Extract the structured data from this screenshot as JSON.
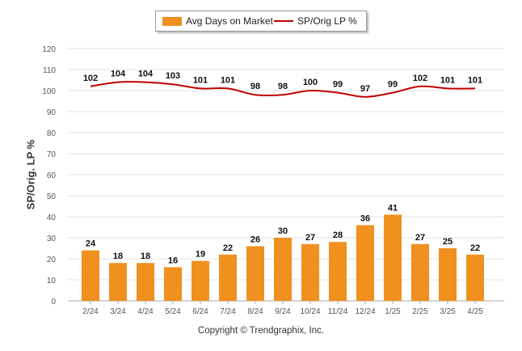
{
  "chart_data": {
    "type": "bar",
    "categories": [
      "2/24",
      "3/24",
      "4/24",
      "5/24",
      "6/24",
      "7/24",
      "8/24",
      "9/24",
      "10/24",
      "11/24",
      "12/24",
      "1/25",
      "2/25",
      "3/25",
      "4/25"
    ],
    "series": [
      {
        "name": "Avg Days on Market",
        "type": "bar",
        "color": "#f0901e",
        "values": [
          24,
          18,
          18,
          16,
          19,
          22,
          26,
          30,
          27,
          28,
          36,
          41,
          27,
          25,
          22
        ]
      },
      {
        "name": "SP/Orig LP %",
        "type": "line",
        "color": "#c00000",
        "values": [
          102,
          104,
          104,
          103,
          101,
          101,
          98,
          98,
          100,
          99,
          97,
          99,
          102,
          101,
          101
        ]
      }
    ],
    "ylabel": "SP/Orig. LP %",
    "ylim": [
      0,
      120
    ],
    "yticks": [
      0,
      10,
      20,
      30,
      40,
      50,
      60,
      70,
      80,
      90,
      100,
      110,
      120
    ],
    "grid": true,
    "legend_position": "top-center"
  },
  "legend": {
    "bar_label": "Avg Days on Market",
    "line_label": "SP/Orig LP %"
  },
  "footer": {
    "copyright": "Copyright © Trendgraphix, Inc."
  }
}
